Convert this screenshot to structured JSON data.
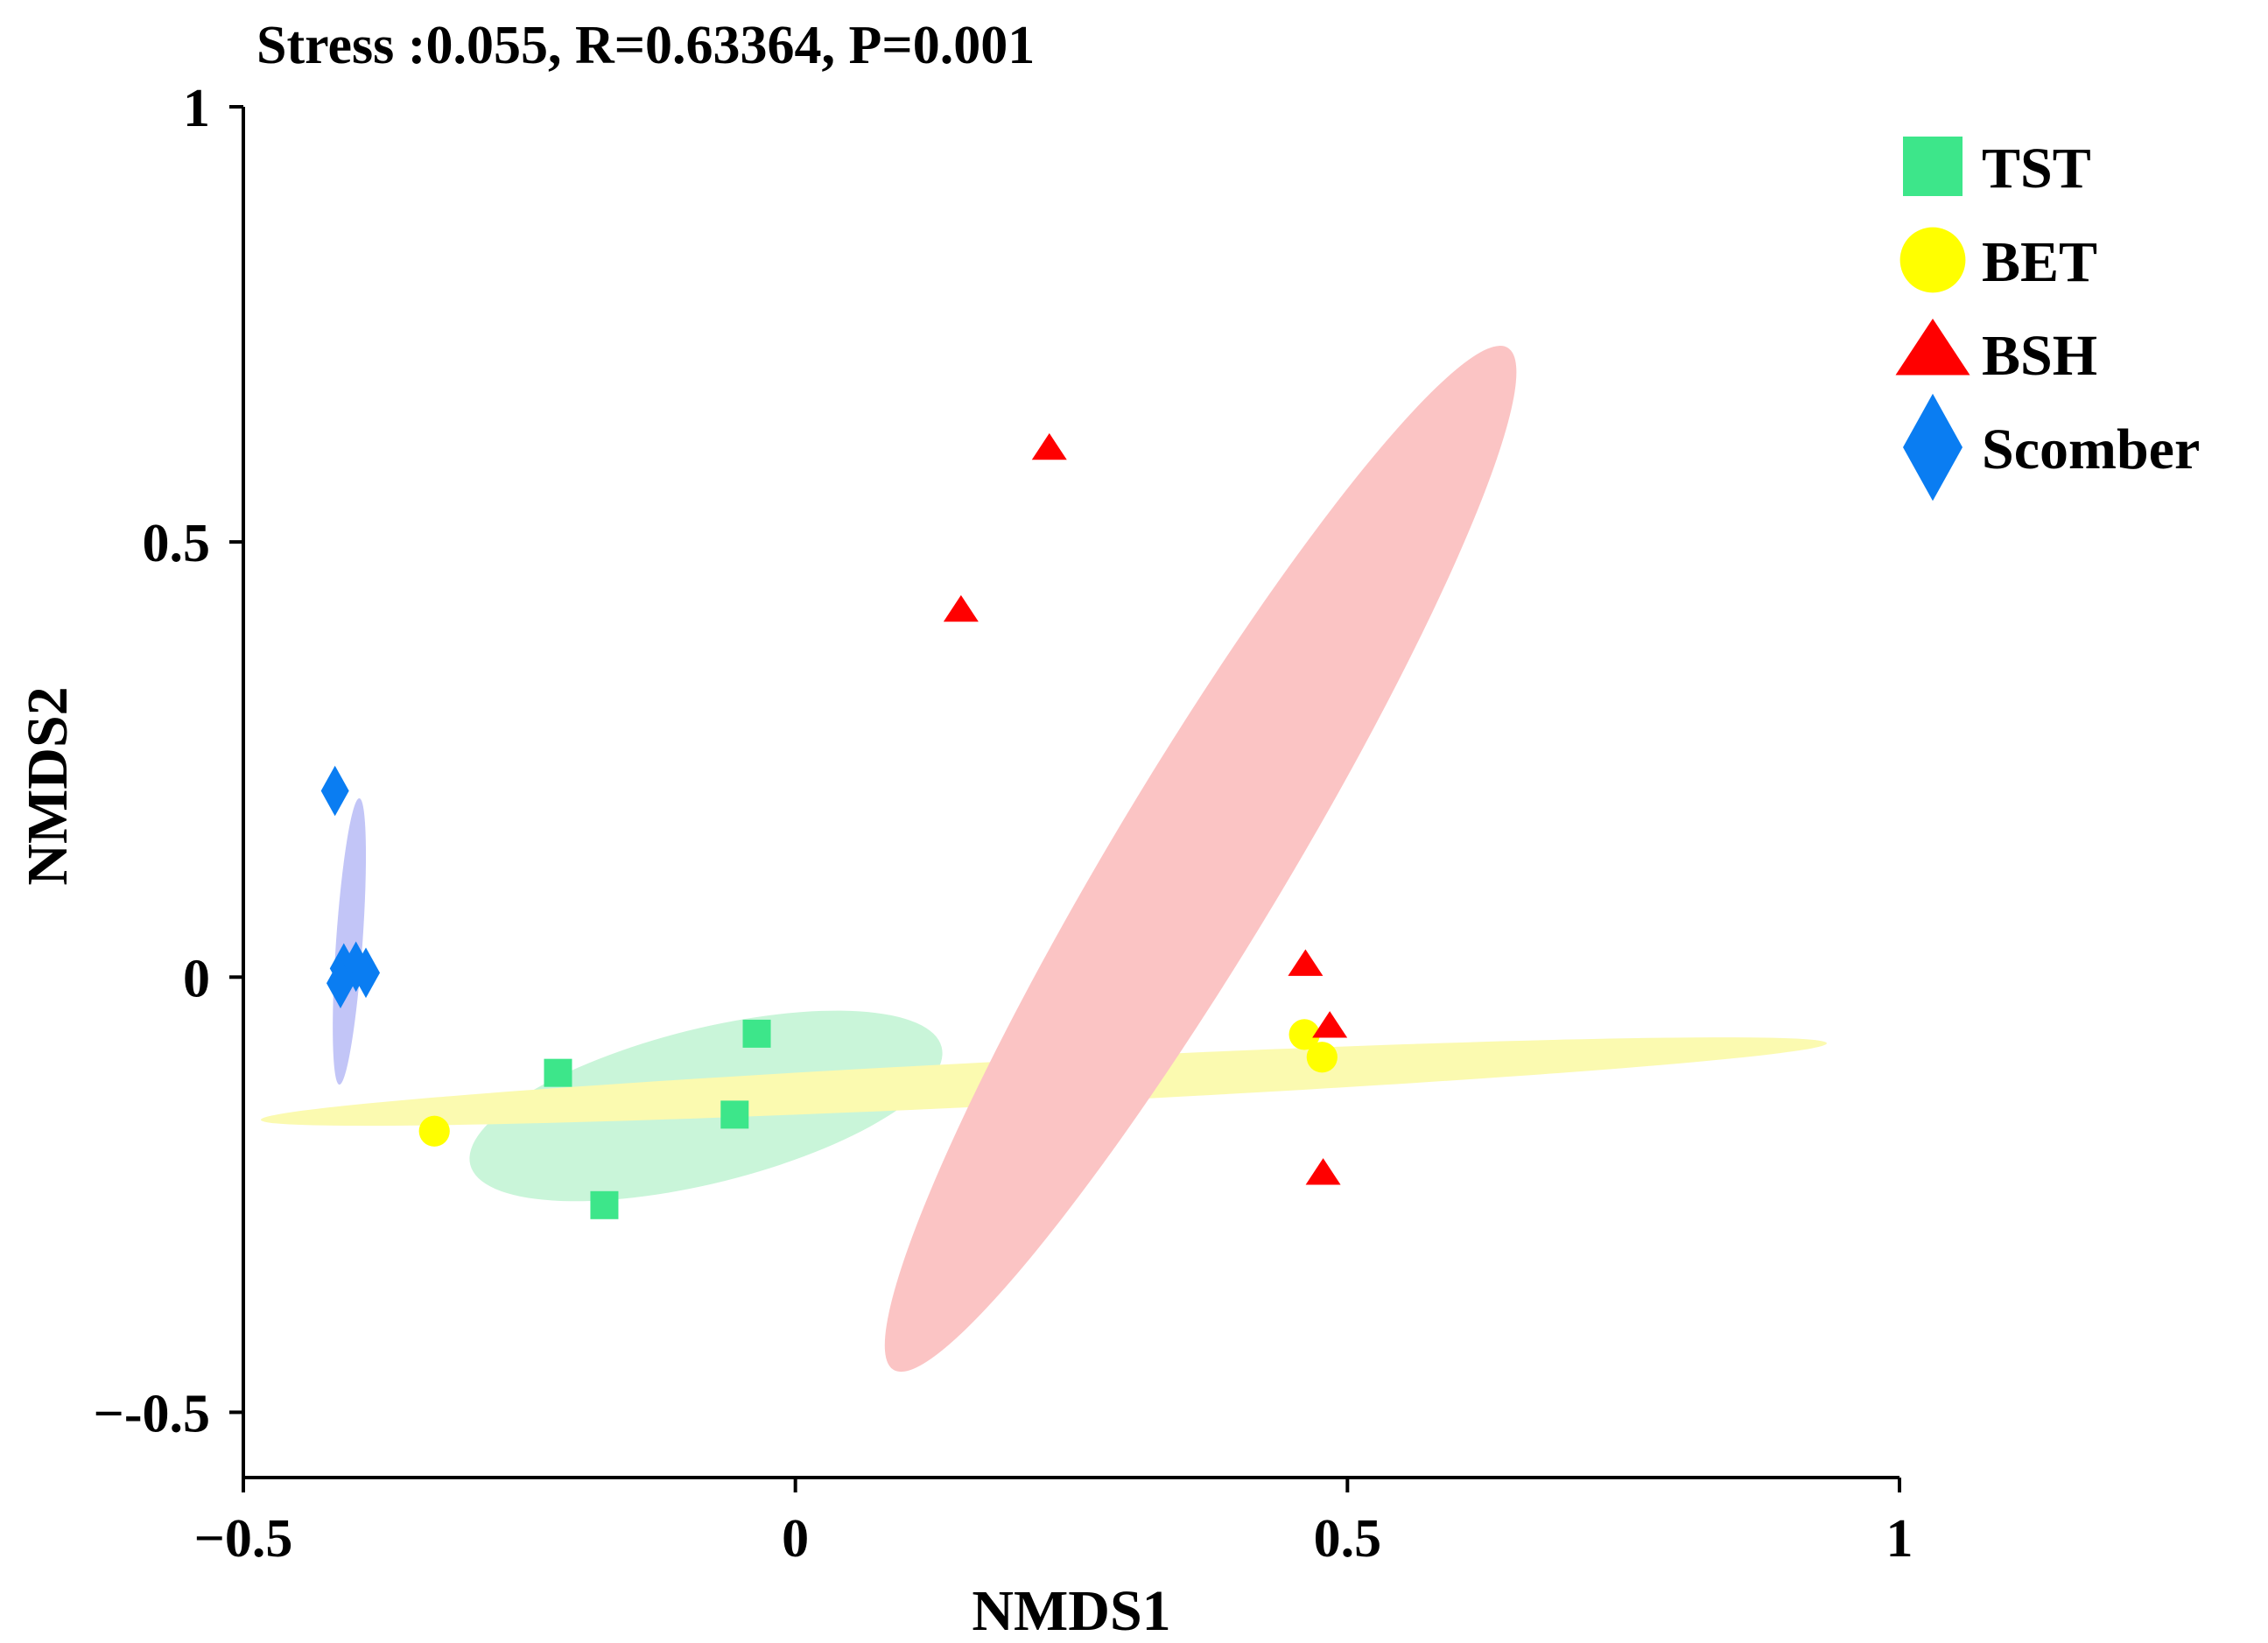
{
  "chart_data": {
    "type": "scatter",
    "title": "Stress :0.055, R=0.63364, P=0.001",
    "xlabel": "NMDS1",
    "ylabel": "NMDS2",
    "xlim": [
      -0.5,
      1
    ],
    "ylim": [
      -0.575,
      1
    ],
    "x_ticks": [
      -0.5,
      0,
      0.5,
      1
    ],
    "x_tick_labels": [
      "−0.5",
      "0",
      "0.5",
      "1"
    ],
    "y_ticks": [
      -0.5,
      0,
      0.5,
      1
    ],
    "y_tick_labels": [
      "−-0.5",
      "0",
      "0.5",
      "1"
    ],
    "legend_position": "top-right",
    "series": [
      {
        "name": "TST",
        "marker": "square",
        "color": "#3de68a",
        "points": [
          [
            -0.215,
            -0.11
          ],
          [
            -0.173,
            -0.262
          ],
          [
            -0.055,
            -0.158
          ],
          [
            -0.035,
            -0.065
          ]
        ],
        "ellipse": {
          "cx": -0.081,
          "cy": -0.148,
          "rx": 0.22,
          "ry": 0.07,
          "angle_deg": 14,
          "color": "#c9f5d9"
        }
      },
      {
        "name": "BET",
        "marker": "circle",
        "color": "#ffff00",
        "points": [
          [
            -0.327,
            -0.177
          ],
          [
            0.461,
            -0.066
          ],
          [
            0.477,
            -0.092
          ]
        ],
        "ellipse": {
          "cx": 0.225,
          "cy": -0.12,
          "rx": 0.71,
          "ry": 0.02,
          "angle_deg": 2.8,
          "color": "#fbfab0"
        }
      },
      {
        "name": "BSH",
        "marker": "triangle",
        "color": "#ff0000",
        "points": [
          [
            0.23,
            0.606
          ],
          [
            0.15,
            0.42
          ],
          [
            0.462,
            0.013
          ],
          [
            0.484,
            -0.058
          ],
          [
            0.478,
            -0.227
          ]
        ],
        "ellipse": {
          "cx": 0.367,
          "cy": 0.136,
          "rx": 0.54,
          "ry": 0.078,
          "angle_deg": 59,
          "color": "#fbc4c4"
        }
      },
      {
        "name": "Scomber",
        "marker": "diamond",
        "color": "#0a7df2",
        "points": [
          [
            -0.417,
            0.214
          ],
          [
            -0.409,
            0.01
          ],
          [
            -0.398,
            0.012
          ],
          [
            -0.389,
            0.005
          ],
          [
            -0.412,
            -0.007
          ]
        ],
        "ellipse": {
          "cx": -0.404,
          "cy": 0.041,
          "rx": 0.13,
          "ry": 0.012,
          "angle_deg": 86,
          "color": "#c2c5f7"
        }
      }
    ]
  }
}
